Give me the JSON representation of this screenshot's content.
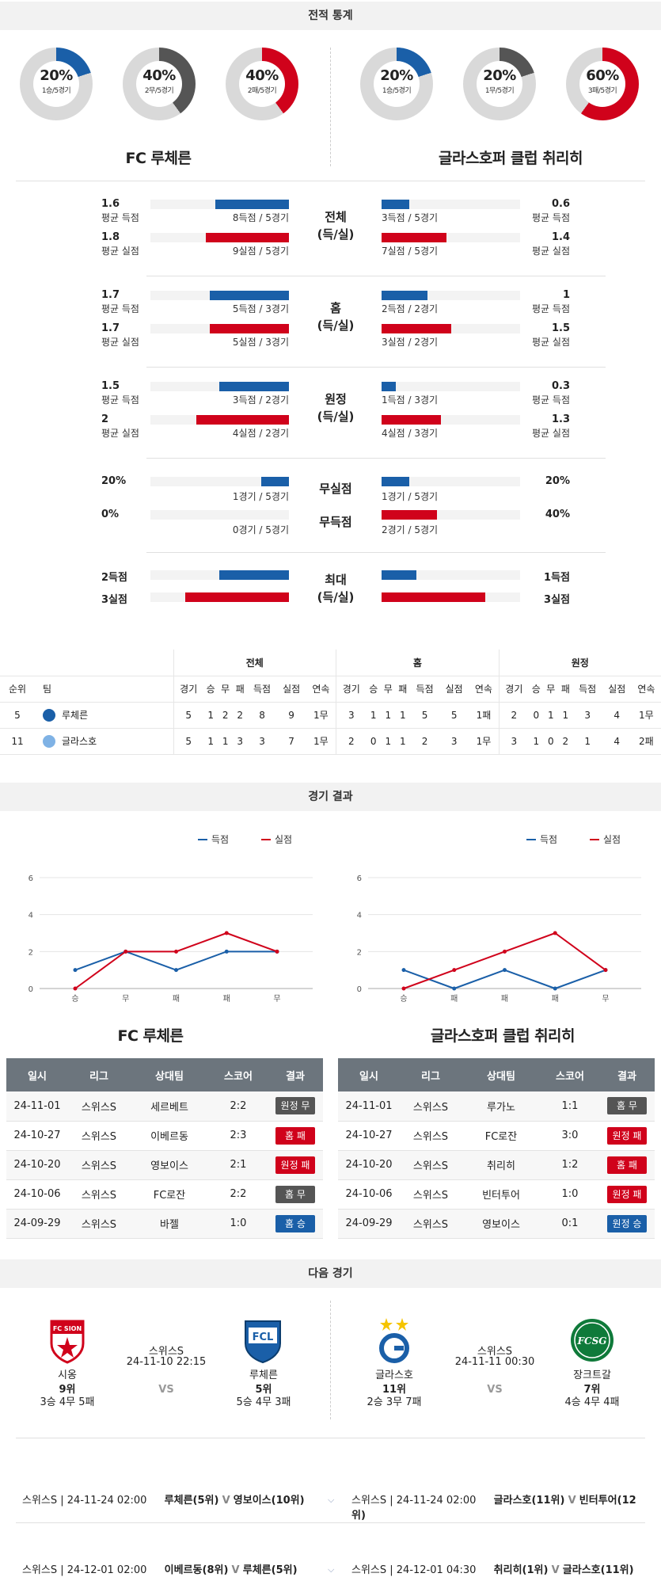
{
  "sections": {
    "stats": "전적 통계",
    "results": "경기 결과",
    "next": "다음 경기"
  },
  "colors": {
    "blue": "#1a5fa8",
    "red": "#d0021b",
    "gray": "#555555",
    "track": "#d9d9d9",
    "win_badge": "#1a5fa8",
    "loss_badge": "#d0021b",
    "draw_badge": "#555555"
  },
  "donuts": [
    {
      "pct": "20%",
      "sub": "1승/5경기",
      "value": 0.2,
      "color": "#1a5fa8"
    },
    {
      "pct": "40%",
      "sub": "2무/5경기",
      "value": 0.4,
      "color": "#555555"
    },
    {
      "pct": "40%",
      "sub": "2패/5경기",
      "value": 0.4,
      "color": "#d0021b"
    },
    {
      "pct": "20%",
      "sub": "1승/5경기",
      "value": 0.2,
      "color": "#1a5fa8"
    },
    {
      "pct": "20%",
      "sub": "1무/5경기",
      "value": 0.2,
      "color": "#555555"
    },
    {
      "pct": "60%",
      "sub": "3패/5경기",
      "value": 0.6,
      "color": "#d0021b"
    }
  ],
  "teams": {
    "home": "FC 루체른",
    "away": "글라스호퍼 클럽 취리히"
  },
  "stat_groups": [
    {
      "label1": "전체",
      "label2": "(득/실)",
      "rows": [
        {
          "lv": "1.6",
          "ll": "평균 득점",
          "lcap": "8득점 / 5경기",
          "lfrac": 0.53,
          "rv": "0.6",
          "rl": "평균 득점",
          "rcap": "3득점 / 5경기",
          "rfrac": 0.2,
          "color": "blue"
        },
        {
          "lv": "1.8",
          "ll": "평균 실점",
          "lcap": "9실점 / 5경기",
          "lfrac": 0.6,
          "rv": "1.4",
          "rl": "평균 실점",
          "rcap": "7실점 / 5경기",
          "rfrac": 0.47,
          "color": "red"
        }
      ]
    },
    {
      "label1": "홈",
      "label2": "(득/실)",
      "rows": [
        {
          "lv": "1.7",
          "ll": "평균 득점",
          "lcap": "5득점 / 3경기",
          "lfrac": 0.57,
          "rv": "1",
          "rl": "평균 득점",
          "rcap": "2득점 / 2경기",
          "rfrac": 0.33,
          "color": "blue"
        },
        {
          "lv": "1.7",
          "ll": "평균 실점",
          "lcap": "5실점 / 3경기",
          "lfrac": 0.57,
          "rv": "1.5",
          "rl": "평균 실점",
          "rcap": "3실점 / 2경기",
          "rfrac": 0.5,
          "color": "red"
        }
      ]
    },
    {
      "label1": "원정",
      "label2": "(득/실)",
      "rows": [
        {
          "lv": "1.5",
          "ll": "평균 득점",
          "lcap": "3득점 / 2경기",
          "lfrac": 0.5,
          "rv": "0.3",
          "rl": "평균 득점",
          "rcap": "1득점 / 3경기",
          "rfrac": 0.1,
          "color": "blue"
        },
        {
          "lv": "2",
          "ll": "평균 실점",
          "lcap": "4실점 / 2경기",
          "lfrac": 0.67,
          "rv": "1.3",
          "rl": "평균 실점",
          "rcap": "4실점 / 3경기",
          "rfrac": 0.43,
          "color": "red"
        }
      ]
    }
  ],
  "clean_rows": [
    {
      "mid": "무실점",
      "lv": "20%",
      "lcap": "1경기 / 5경기",
      "lfrac": 0.2,
      "rv": "20%",
      "rcap": "1경기 / 5경기",
      "rfrac": 0.2,
      "color": "blue"
    },
    {
      "mid": "무득점",
      "lv": "0%",
      "lcap": "0경기 / 5경기",
      "lfrac": 0,
      "rv": "40%",
      "rcap": "2경기 / 5경기",
      "rfrac": 0.4,
      "color": "red"
    }
  ],
  "max_rows": {
    "label1": "최대",
    "label2": "(득/실)",
    "rows": [
      {
        "lv": "2득점",
        "lfrac": 0.5,
        "rv": "1득점",
        "rfrac": 0.25,
        "color": "blue"
      },
      {
        "lv": "3실점",
        "lfrac": 0.75,
        "rv": "3실점",
        "rfrac": 0.75,
        "color": "red"
      }
    ]
  },
  "standings": {
    "groups": [
      "전체",
      "홈",
      "원정"
    ],
    "head": [
      "순위",
      "팀"
    ],
    "cols": [
      "경기",
      "승",
      "무",
      "패",
      "득점",
      "실점",
      "연속"
    ],
    "rows": [
      {
        "rank": "5",
        "team": "루체른",
        "total": [
          "5",
          "1",
          "2",
          "2",
          "8",
          "9",
          "1무"
        ],
        "home": [
          "3",
          "1",
          "1",
          "1",
          "5",
          "5",
          "1패"
        ],
        "away": [
          "2",
          "0",
          "1",
          "1",
          "3",
          "4",
          "1무"
        ]
      },
      {
        "rank": "11",
        "team": "글라스호",
        "total": [
          "5",
          "1",
          "1",
          "3",
          "3",
          "7",
          "1무"
        ],
        "home": [
          "2",
          "0",
          "1",
          "1",
          "2",
          "3",
          "1무"
        ],
        "away": [
          "3",
          "1",
          "0",
          "2",
          "1",
          "4",
          "2패"
        ]
      }
    ]
  },
  "charts": [
    {
      "legend": [
        "득점",
        "실점"
      ],
      "yticks": [
        "0",
        "2",
        "4",
        "6"
      ],
      "x": [
        "승",
        "무",
        "패",
        "패",
        "무"
      ],
      "scored": [
        1,
        2,
        1,
        2,
        2
      ],
      "conceded": [
        0,
        2,
        2,
        3,
        2
      ],
      "ylim": [
        0,
        6
      ]
    },
    {
      "legend": [
        "득점",
        "실점"
      ],
      "yticks": [
        "0",
        "2",
        "4",
        "6"
      ],
      "x": [
        "승",
        "패",
        "패",
        "패",
        "무"
      ],
      "scored": [
        1,
        0,
        1,
        0,
        1
      ],
      "conceded": [
        0,
        1,
        2,
        3,
        1
      ],
      "ylim": [
        0,
        6
      ]
    }
  ],
  "chart_data": [
    {
      "type": "line",
      "categories": [
        "승",
        "무",
        "패",
        "패",
        "무"
      ],
      "series": [
        {
          "name": "득점",
          "values": [
            1,
            2,
            1,
            2,
            2
          ]
        },
        {
          "name": "실점",
          "values": [
            0,
            2,
            2,
            3,
            2
          ]
        }
      ],
      "ylim": [
        0,
        6
      ],
      "legend": "top-right",
      "grid": true
    },
    {
      "type": "line",
      "categories": [
        "승",
        "패",
        "패",
        "패",
        "무"
      ],
      "series": [
        {
          "name": "득점",
          "values": [
            1,
            0,
            1,
            0,
            1
          ]
        },
        {
          "name": "실점",
          "values": [
            0,
            1,
            2,
            3,
            1
          ]
        }
      ],
      "ylim": [
        0,
        6
      ],
      "legend": "top-right",
      "grid": true
    }
  ],
  "results": {
    "headers": [
      "일시",
      "리그",
      "상대팀",
      "스코어",
      "결과"
    ],
    "home": [
      {
        "date": "24-11-01",
        "league": "스위스S",
        "opp": "세르베트",
        "score": "2:2",
        "res": "원정 무",
        "kind": "draw"
      },
      {
        "date": "24-10-27",
        "league": "스위스S",
        "opp": "이베르동",
        "score": "2:3",
        "res": "홈 패",
        "kind": "loss"
      },
      {
        "date": "24-10-20",
        "league": "스위스S",
        "opp": "영보이스",
        "score": "2:1",
        "res": "원정 패",
        "kind": "loss"
      },
      {
        "date": "24-10-06",
        "league": "스위스S",
        "opp": "FC로잔",
        "score": "2:2",
        "res": "홈 무",
        "kind": "draw"
      },
      {
        "date": "24-09-29",
        "league": "스위스S",
        "opp": "바젤",
        "score": "1:0",
        "res": "홈 승",
        "kind": "win"
      }
    ],
    "away": [
      {
        "date": "24-11-01",
        "league": "스위스S",
        "opp": "루가노",
        "score": "1:1",
        "res": "홈 무",
        "kind": "draw"
      },
      {
        "date": "24-10-27",
        "league": "스위스S",
        "opp": "FC로잔",
        "score": "3:0",
        "res": "원정 패",
        "kind": "loss"
      },
      {
        "date": "24-10-20",
        "league": "스위스S",
        "opp": "취리히",
        "score": "1:2",
        "res": "홈 패",
        "kind": "loss"
      },
      {
        "date": "24-10-06",
        "league": "스위스S",
        "opp": "빈터투어",
        "score": "1:0",
        "res": "원정 패",
        "kind": "loss"
      },
      {
        "date": "24-09-29",
        "league": "스위스S",
        "opp": "영보이스",
        "score": "0:1",
        "res": "원정 승",
        "kind": "win"
      }
    ]
  },
  "next": {
    "left": {
      "league": "스위스S",
      "time": "24-11-10 22:15",
      "vs": "VS",
      "t1": {
        "name": "시옹",
        "rank": "9위",
        "rec": "3승 4무 5패",
        "logo": "FC SION"
      },
      "t2": {
        "name": "루체른",
        "rank": "5위",
        "rec": "5승 4무 3패",
        "logo": "FCL"
      }
    },
    "right": {
      "league": "스위스S",
      "time": "24-11-11 00:30",
      "vs": "VS",
      "t1": {
        "name": "글라스호",
        "rank": "11위",
        "rec": "2승 3무 7패",
        "logo": "G"
      },
      "t2": {
        "name": "장크트갈",
        "rank": "7위",
        "rec": "4승 4무 4패",
        "logo": "FCSG"
      }
    }
  },
  "upcoming": [
    {
      "left": {
        "info": "스위스S | 24-11-24 02:00",
        "a": "루체른(5위)",
        "v": "V",
        "b": "영보이스(10위)"
      },
      "right": {
        "info": "스위스S | 24-11-24 02:00",
        "a": "글라스호(11위)",
        "v": "V",
        "b": "빈터투어(12위)"
      }
    },
    {
      "left": {
        "info": "스위스S | 24-12-01 02:00",
        "a": "이베르동(8위)",
        "v": "V",
        "b": "루체른(5위)"
      },
      "right": {
        "info": "스위스S | 24-12-01 04:30",
        "a": "취리히(1위)",
        "v": "V",
        "b": "글라스호(11위)"
      }
    }
  ]
}
